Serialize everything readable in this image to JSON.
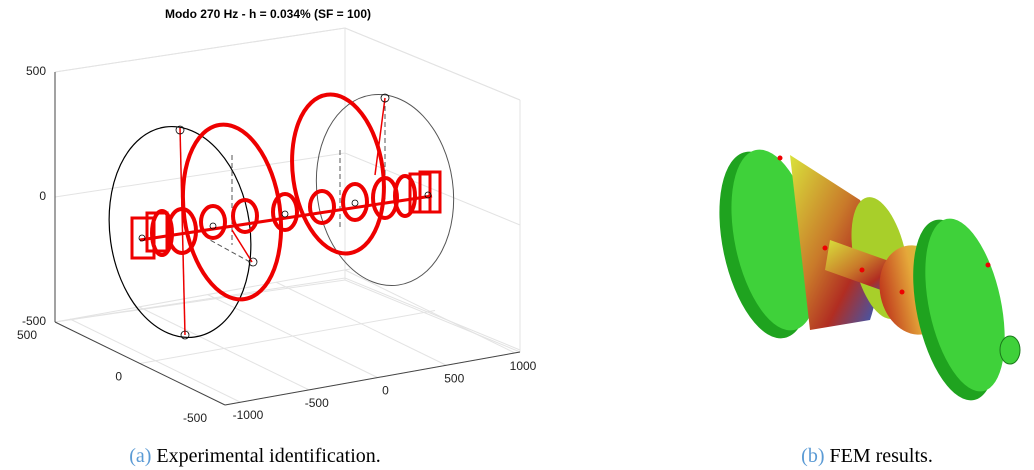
{
  "figure": {
    "panels": [
      {
        "label": "(a)",
        "caption": "Experimental identification.",
        "title": "Modo 270 Hz - h = 0.034% (SF = 100)",
        "z_ticks": [
          500,
          0,
          -500
        ],
        "y_ticks": [
          500,
          0,
          -500
        ],
        "x_ticks": [
          -1000,
          -500,
          0,
          500,
          1000
        ]
      },
      {
        "label": "(b)",
        "caption": "FEM results."
      }
    ]
  }
}
